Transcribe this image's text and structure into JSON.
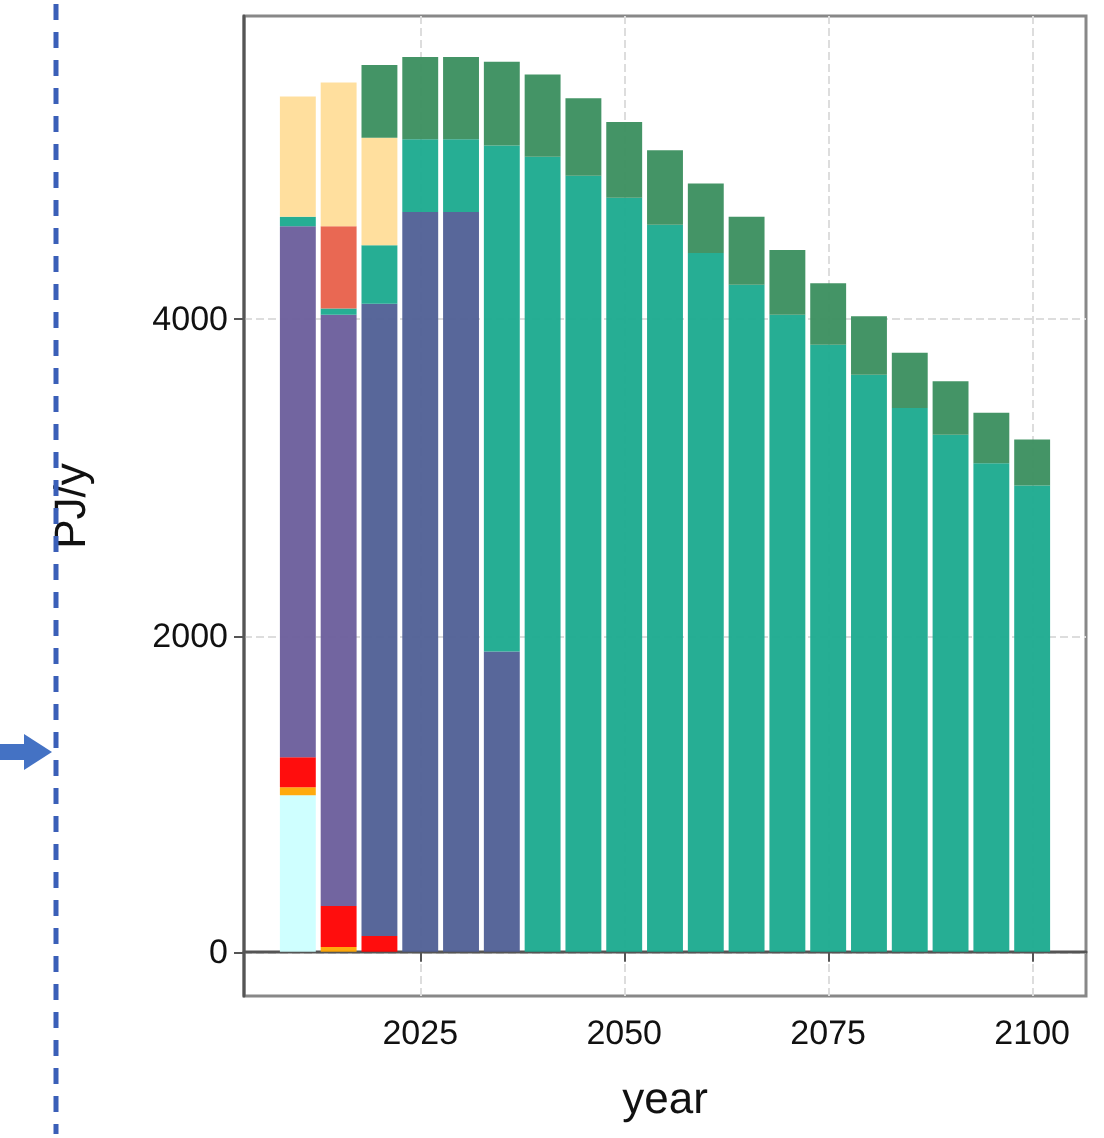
{
  "chart_data": {
    "type": "bar",
    "stacked": true,
    "xlabel": "year",
    "ylabel": "PJ/y",
    "grid": true,
    "x": [
      2010,
      2015,
      2020,
      2025,
      2030,
      2035,
      2040,
      2045,
      2050,
      2055,
      2060,
      2065,
      2070,
      2075,
      2080,
      2085,
      2090,
      2095,
      2100
    ],
    "xlim": [
      2003.4,
      2106.6
    ],
    "xticks": [
      2025,
      2050,
      2075,
      2100
    ],
    "ylim": [
      -280,
      5920
    ],
    "yticks": [
      0,
      2000,
      4000
    ],
    "series": [
      {
        "color": "#ccffff",
        "values": [
          990,
          0,
          0,
          0,
          0,
          0,
          0,
          0,
          0,
          0,
          0,
          0,
          0,
          0,
          0,
          0,
          0,
          0,
          0
        ]
      },
      {
        "color": "#ffa500",
        "values": [
          50,
          30,
          0,
          0,
          0,
          0,
          0,
          0,
          0,
          0,
          0,
          0,
          0,
          0,
          0,
          0,
          0,
          0,
          0
        ]
      },
      {
        "color": "#ff0000",
        "values": [
          190,
          260,
          100,
          0,
          0,
          0,
          0,
          0,
          0,
          0,
          0,
          0,
          0,
          0,
          0,
          0,
          0,
          0,
          0
        ]
      },
      {
        "color": "#6a5d9b",
        "values": [
          3360,
          3740,
          0,
          0,
          0,
          0,
          0,
          0,
          0,
          0,
          0,
          0,
          0,
          0,
          0,
          0,
          0,
          0,
          0
        ]
      },
      {
        "color": "#4f5f95",
        "values": [
          0,
          0,
          4000,
          4680,
          4680,
          1900,
          0,
          0,
          0,
          0,
          0,
          0,
          0,
          0,
          0,
          0,
          0,
          0,
          0
        ]
      },
      {
        "color": "#1aaa8e",
        "values": [
          60,
          40,
          370,
          460,
          460,
          3200,
          5030,
          4910,
          4770,
          4600,
          4420,
          4220,
          4030,
          3840,
          3650,
          3440,
          3270,
          3090,
          2950
        ]
      },
      {
        "color": "#e8604a",
        "values": [
          0,
          520,
          0,
          0,
          0,
          0,
          0,
          0,
          0,
          0,
          0,
          0,
          0,
          0,
          0,
          0,
          0,
          0,
          0
        ]
      },
      {
        "color": "#ffdd99",
        "values": [
          760,
          910,
          680,
          0,
          0,
          0,
          0,
          0,
          0,
          0,
          0,
          0,
          0,
          0,
          0,
          0,
          0,
          0,
          0
        ]
      },
      {
        "color": "#3a8e5e",
        "values": [
          0,
          0,
          460,
          520,
          520,
          530,
          520,
          490,
          480,
          470,
          440,
          430,
          410,
          390,
          370,
          350,
          340,
          320,
          290
        ]
      }
    ]
  }
}
